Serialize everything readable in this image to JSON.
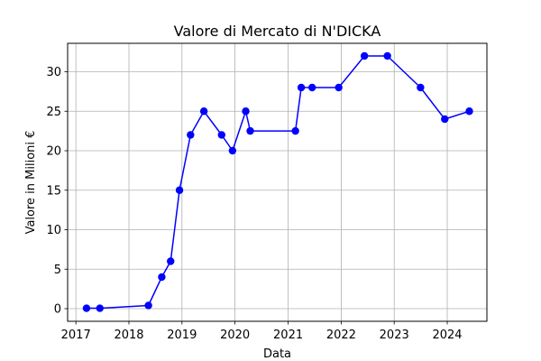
{
  "chart_data": {
    "type": "line",
    "title": "Valore di Mercato di N'DICKA",
    "xlabel": "Data",
    "ylabel": "Valore in Milioni €",
    "grid": true,
    "xlim": [
      "2016-11-05",
      "2024-09-30"
    ],
    "ylim": [
      -1.6,
      33.6
    ],
    "x_ticks": [
      {
        "date": "2017-01-01",
        "label": "2017"
      },
      {
        "date": "2018-01-01",
        "label": "2018"
      },
      {
        "date": "2019-01-01",
        "label": "2019"
      },
      {
        "date": "2020-01-01",
        "label": "2020"
      },
      {
        "date": "2021-01-01",
        "label": "2021"
      },
      {
        "date": "2022-01-01",
        "label": "2022"
      },
      {
        "date": "2023-01-01",
        "label": "2023"
      },
      {
        "date": "2024-01-01",
        "label": "2024"
      }
    ],
    "y_ticks": [
      0,
      5,
      10,
      15,
      20,
      25,
      30
    ],
    "series": [
      {
        "color": "#0000ff",
        "points": [
          {
            "x": "2017-03-15",
            "y": 0.05
          },
          {
            "x": "2017-06-15",
            "y": 0.05
          },
          {
            "x": "2018-05-15",
            "y": 0.4
          },
          {
            "x": "2018-08-15",
            "y": 4
          },
          {
            "x": "2018-10-15",
            "y": 6
          },
          {
            "x": "2018-12-15",
            "y": 15
          },
          {
            "x": "2019-03-01",
            "y": 22
          },
          {
            "x": "2019-06-01",
            "y": 25
          },
          {
            "x": "2019-10-01",
            "y": 22
          },
          {
            "x": "2019-12-15",
            "y": 20
          },
          {
            "x": "2020-03-15",
            "y": 25
          },
          {
            "x": "2020-04-15",
            "y": 22.5
          },
          {
            "x": "2021-02-20",
            "y": 22.5
          },
          {
            "x": "2021-04-01",
            "y": 28
          },
          {
            "x": "2021-06-15",
            "y": 28
          },
          {
            "x": "2021-12-15",
            "y": 28
          },
          {
            "x": "2022-06-10",
            "y": 32
          },
          {
            "x": "2022-11-15",
            "y": 32
          },
          {
            "x": "2023-07-01",
            "y": 28
          },
          {
            "x": "2023-12-15",
            "y": 24
          },
          {
            "x": "2024-06-01",
            "y": 25
          }
        ]
      }
    ]
  }
}
